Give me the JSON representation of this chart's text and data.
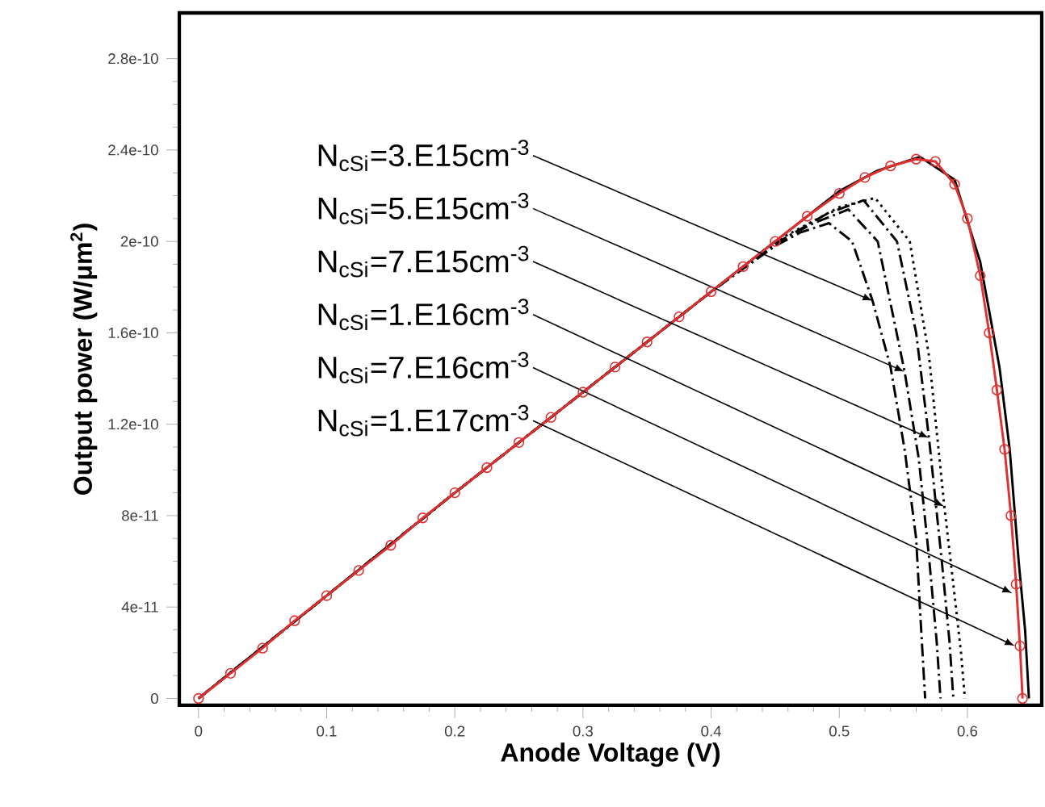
{
  "chart_data": {
    "type": "line",
    "xlabel": "Anode Voltage (V)",
    "ylabel": "Output power (W/μm$^{2}$)",
    "xlim": [
      -0.015,
      0.658
    ],
    "ylim": [
      -3e-12,
      3e-10
    ],
    "xticks": [
      0,
      0.1,
      0.2,
      0.3,
      0.4,
      0.5,
      0.6
    ],
    "yticks": [
      {
        "value": 0,
        "label": "0"
      },
      {
        "value": 4e-11,
        "label": "4e-11"
      },
      {
        "value": 8e-11,
        "label": "8e-11"
      },
      {
        "value": 1.2e-10,
        "label": "1.2e-10"
      },
      {
        "value": 1.6e-10,
        "label": "1.6e-10"
      },
      {
        "value": 2e-10,
        "label": "2e-10"
      },
      {
        "value": 2.4e-10,
        "label": "2.4e-10"
      },
      {
        "value": 2.8e-10,
        "label": "2.8e-10"
      }
    ],
    "annotations": [
      {
        "text": "N$_{cSi}$=3.E15cm$^{-3}$",
        "x": 0.526,
        "y": 1.74e-10
      },
      {
        "text": "N$_{cSi}$=5.E15cm$^{-3}$",
        "x": 0.551,
        "y": 1.43e-10
      },
      {
        "text": "N$_{cSi}$=7.E15cm$^{-3}$",
        "x": 0.57,
        "y": 1.14e-10
      },
      {
        "text": "N$_{cSi}$=1.E16cm$^{-3}$",
        "x": 0.582,
        "y": 8.4e-11
      },
      {
        "text": "N$_{cSi}$=7.E16cm$^{-3}$",
        "x": 0.635,
        "y": 4.6e-11
      },
      {
        "text": "N$_{cSi}$=1.E17cm$^{-3}$",
        "x": 0.637,
        "y": 2.3e-11
      }
    ],
    "series": [
      {
        "color": "#000000",
        "line_style": "dashed",
        "x": [
          0,
          0.1,
          0.2,
          0.3,
          0.4,
          0.45,
          0.47,
          0.492,
          0.51,
          0.526,
          0.54,
          0.551,
          0.56,
          0.563,
          0.567
        ],
        "values": [
          0,
          4.5e-11,
          9e-11,
          1.34e-10,
          1.78e-10,
          1.98e-10,
          2.04e-10,
          2.08e-10,
          2e-10,
          1.74e-10,
          1.45e-10,
          1.09e-10,
          7e-11,
          3.9e-11,
          0
        ]
      },
      {
        "color": "#000000",
        "line_style": "dashed",
        "x": [
          0,
          0.1,
          0.2,
          0.3,
          0.4,
          0.45,
          0.48,
          0.507,
          0.53,
          0.551,
          0.562,
          0.57,
          0.576,
          0.579
        ],
        "values": [
          0,
          4.5e-11,
          9e-11,
          1.34e-10,
          1.78e-10,
          1.99e-10,
          2.08e-10,
          2.14e-10,
          2e-10,
          1.43e-10,
          1.05e-10,
          6.2e-11,
          2.5e-11,
          0
        ]
      },
      {
        "color": "#000000",
        "line_style": "dashed",
        "x": [
          0,
          0.1,
          0.2,
          0.3,
          0.4,
          0.45,
          0.49,
          0.519,
          0.545,
          0.56,
          0.57,
          0.58,
          0.586,
          0.589
        ],
        "values": [
          0,
          4.5e-11,
          9e-11,
          1.34e-10,
          1.78e-10,
          1.99e-10,
          2.12e-10,
          2.18e-10,
          2e-10,
          1.6e-10,
          1.14e-10,
          6e-11,
          2.5e-11,
          0
        ]
      },
      {
        "color": "#000000",
        "line_style": "dotted",
        "x": [
          0,
          0.1,
          0.2,
          0.3,
          0.4,
          0.45,
          0.5,
          0.528,
          0.555,
          0.57,
          0.582,
          0.59,
          0.595,
          0.598
        ],
        "values": [
          0,
          4.5e-11,
          9e-11,
          1.34e-10,
          1.78e-10,
          2e-10,
          2.15e-10,
          2.19e-10,
          2e-10,
          1.5e-10,
          8.4e-11,
          4.5e-11,
          2e-11,
          0
        ]
      },
      {
        "color": "#000000",
        "line_style": "solid",
        "x": [
          0,
          0.1,
          0.2,
          0.3,
          0.4,
          0.45,
          0.5,
          0.53,
          0.563,
          0.59,
          0.61,
          0.625,
          0.633,
          0.64,
          0.645,
          0.648
        ],
        "values": [
          0,
          4.5e-11,
          9e-11,
          1.34e-10,
          1.78e-10,
          2e-10,
          2.22e-10,
          2.31e-10,
          2.37e-10,
          2.27e-10,
          1.91e-10,
          1.45e-10,
          1.09e-10,
          6e-11,
          3e-11,
          0
        ]
      },
      {
        "color": "#e03030",
        "marker": "circle",
        "line_style": "solid",
        "x": [
          0,
          0.025,
          0.05,
          0.075,
          0.1,
          0.125,
          0.15,
          0.175,
          0.2,
          0.225,
          0.25,
          0.275,
          0.3,
          0.325,
          0.35,
          0.375,
          0.4,
          0.425,
          0.45,
          0.475,
          0.5,
          0.52,
          0.54,
          0.56,
          0.575,
          0.59,
          0.6,
          0.61,
          0.617,
          0.623,
          0.629,
          0.634,
          0.638,
          0.641,
          0.643
        ],
        "values": [
          0,
          1.1e-11,
          2.2e-11,
          3.4e-11,
          4.5e-11,
          5.6e-11,
          6.7e-11,
          7.9e-11,
          9e-11,
          1.01e-10,
          1.12e-10,
          1.23e-10,
          1.34e-10,
          1.45e-10,
          1.56e-10,
          1.67e-10,
          1.78e-10,
          1.89e-10,
          2e-10,
          2.11e-10,
          2.21e-10,
          2.28e-10,
          2.33e-10,
          2.36e-10,
          2.35e-10,
          2.25e-10,
          2.1e-10,
          1.85e-10,
          1.6e-10,
          1.35e-10,
          1.09e-10,
          8e-11,
          5e-11,
          2.3e-11,
          0
        ]
      }
    ]
  }
}
